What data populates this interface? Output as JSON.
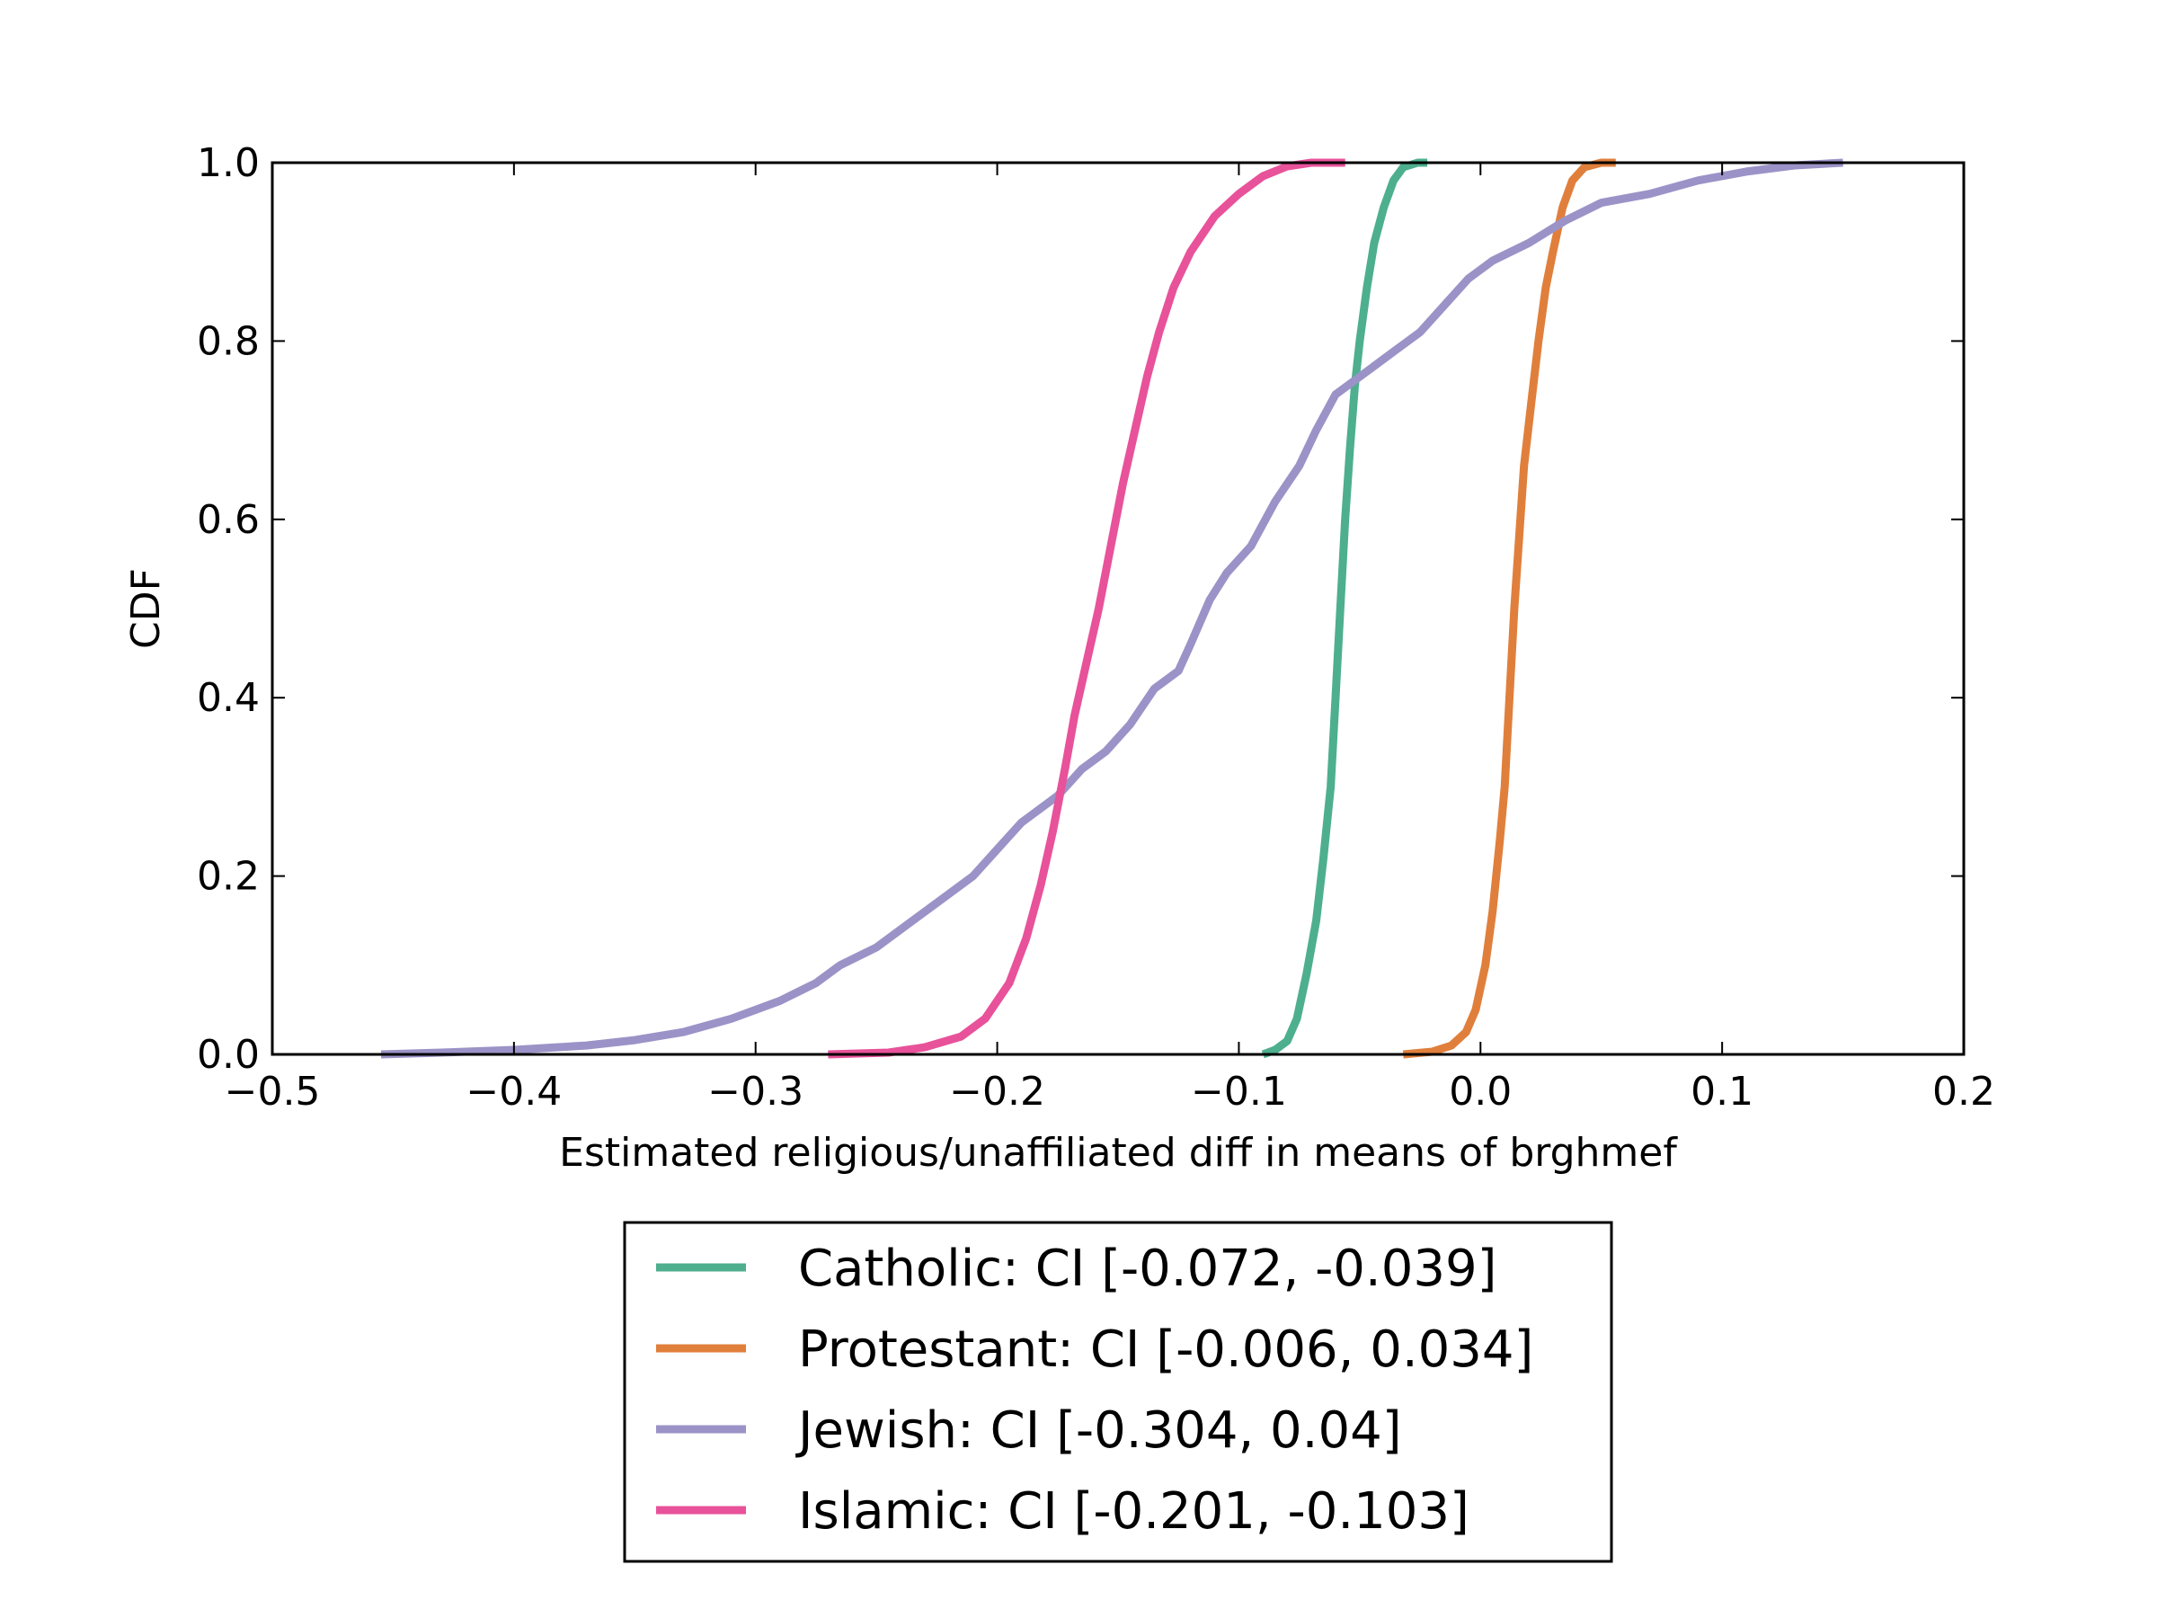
{
  "chart_data": {
    "type": "line",
    "title": "",
    "xlabel": "Estimated religious/unaffiliated diff in means of brghmef",
    "ylabel": "CDF",
    "xlim": [
      -0.5,
      0.2
    ],
    "ylim": [
      0.0,
      1.0
    ],
    "x_ticks": [
      -0.5,
      -0.4,
      -0.3,
      -0.2,
      -0.1,
      0.0,
      0.1,
      0.2
    ],
    "x_tick_labels": [
      "−0.5",
      "−0.4",
      "−0.3",
      "−0.2",
      "−0.1",
      "0.0",
      "0.1",
      "0.2"
    ],
    "y_ticks": [
      0.0,
      0.2,
      0.4,
      0.6,
      0.8,
      1.0
    ],
    "y_tick_labels": [
      "0.0",
      "0.2",
      "0.4",
      "0.6",
      "0.8",
      "1.0"
    ],
    "grid": false,
    "legend_position": "below",
    "series": [
      {
        "name": "Catholic: CI [-0.072, -0.039]",
        "color": "#4daf8e",
        "points": [
          [
            -0.09,
            0.0
          ],
          [
            -0.085,
            0.005
          ],
          [
            -0.08,
            0.015
          ],
          [
            -0.076,
            0.04
          ],
          [
            -0.072,
            0.09
          ],
          [
            -0.068,
            0.15
          ],
          [
            -0.065,
            0.22
          ],
          [
            -0.062,
            0.3
          ],
          [
            -0.06,
            0.4
          ],
          [
            -0.058,
            0.5
          ],
          [
            -0.056,
            0.6
          ],
          [
            -0.054,
            0.68
          ],
          [
            -0.052,
            0.75
          ],
          [
            -0.05,
            0.8
          ],
          [
            -0.047,
            0.86
          ],
          [
            -0.044,
            0.91
          ],
          [
            -0.04,
            0.95
          ],
          [
            -0.036,
            0.98
          ],
          [
            -0.032,
            0.995
          ],
          [
            -0.026,
            1.0
          ],
          [
            -0.022,
            1.0
          ]
        ]
      },
      {
        "name": "Protestant: CI [-0.006, 0.034]",
        "color": "#e07f3b",
        "points": [
          [
            -0.032,
            0.0
          ],
          [
            -0.02,
            0.003
          ],
          [
            -0.012,
            0.01
          ],
          [
            -0.006,
            0.025
          ],
          [
            -0.002,
            0.05
          ],
          [
            0.002,
            0.1
          ],
          [
            0.005,
            0.16
          ],
          [
            0.008,
            0.24
          ],
          [
            0.01,
            0.3
          ],
          [
            0.012,
            0.4
          ],
          [
            0.014,
            0.5
          ],
          [
            0.016,
            0.58
          ],
          [
            0.018,
            0.66
          ],
          [
            0.021,
            0.73
          ],
          [
            0.024,
            0.8
          ],
          [
            0.027,
            0.86
          ],
          [
            0.03,
            0.9
          ],
          [
            0.034,
            0.95
          ],
          [
            0.038,
            0.98
          ],
          [
            0.043,
            0.995
          ],
          [
            0.05,
            1.0
          ],
          [
            0.056,
            1.0
          ]
        ]
      },
      {
        "name": "Jewish: CI [-0.304, 0.04]",
        "color": "#9b93c7",
        "points": [
          [
            -0.455,
            0.0
          ],
          [
            -0.43,
            0.002
          ],
          [
            -0.4,
            0.005
          ],
          [
            -0.37,
            0.01
          ],
          [
            -0.35,
            0.016
          ],
          [
            -0.33,
            0.025
          ],
          [
            -0.31,
            0.04
          ],
          [
            -0.29,
            0.06
          ],
          [
            -0.275,
            0.08
          ],
          [
            -0.265,
            0.1
          ],
          [
            -0.25,
            0.12
          ],
          [
            -0.24,
            0.14
          ],
          [
            -0.225,
            0.17
          ],
          [
            -0.21,
            0.2
          ],
          [
            -0.2,
            0.23
          ],
          [
            -0.19,
            0.26
          ],
          [
            -0.175,
            0.29
          ],
          [
            -0.165,
            0.32
          ],
          [
            -0.155,
            0.34
          ],
          [
            -0.145,
            0.37
          ],
          [
            -0.135,
            0.41
          ],
          [
            -0.125,
            0.43
          ],
          [
            -0.12,
            0.46
          ],
          [
            -0.112,
            0.51
          ],
          [
            -0.105,
            0.54
          ],
          [
            -0.095,
            0.57
          ],
          [
            -0.085,
            0.62
          ],
          [
            -0.075,
            0.66
          ],
          [
            -0.068,
            0.7
          ],
          [
            -0.06,
            0.74
          ],
          [
            -0.045,
            0.77
          ],
          [
            -0.035,
            0.79
          ],
          [
            -0.025,
            0.81
          ],
          [
            -0.015,
            0.84
          ],
          [
            -0.005,
            0.87
          ],
          [
            0.005,
            0.89
          ],
          [
            0.02,
            0.91
          ],
          [
            0.035,
            0.935
          ],
          [
            0.05,
            0.955
          ],
          [
            0.07,
            0.965
          ],
          [
            0.09,
            0.98
          ],
          [
            0.11,
            0.99
          ],
          [
            0.13,
            0.997
          ],
          [
            0.15,
            1.0
          ]
        ]
      },
      {
        "name": "Islamic: CI [-0.201, -0.103]",
        "color": "#e8529a",
        "points": [
          [
            -0.27,
            0.0
          ],
          [
            -0.245,
            0.002
          ],
          [
            -0.23,
            0.008
          ],
          [
            -0.215,
            0.02
          ],
          [
            -0.205,
            0.04
          ],
          [
            -0.195,
            0.08
          ],
          [
            -0.188,
            0.13
          ],
          [
            -0.182,
            0.19
          ],
          [
            -0.177,
            0.25
          ],
          [
            -0.172,
            0.32
          ],
          [
            -0.168,
            0.38
          ],
          [
            -0.163,
            0.44
          ],
          [
            -0.158,
            0.5
          ],
          [
            -0.153,
            0.57
          ],
          [
            -0.148,
            0.64
          ],
          [
            -0.143,
            0.7
          ],
          [
            -0.138,
            0.76
          ],
          [
            -0.133,
            0.81
          ],
          [
            -0.127,
            0.86
          ],
          [
            -0.12,
            0.9
          ],
          [
            -0.11,
            0.94
          ],
          [
            -0.1,
            0.965
          ],
          [
            -0.09,
            0.985
          ],
          [
            -0.08,
            0.996
          ],
          [
            -0.07,
            1.0
          ],
          [
            -0.056,
            1.0
          ]
        ]
      }
    ]
  }
}
